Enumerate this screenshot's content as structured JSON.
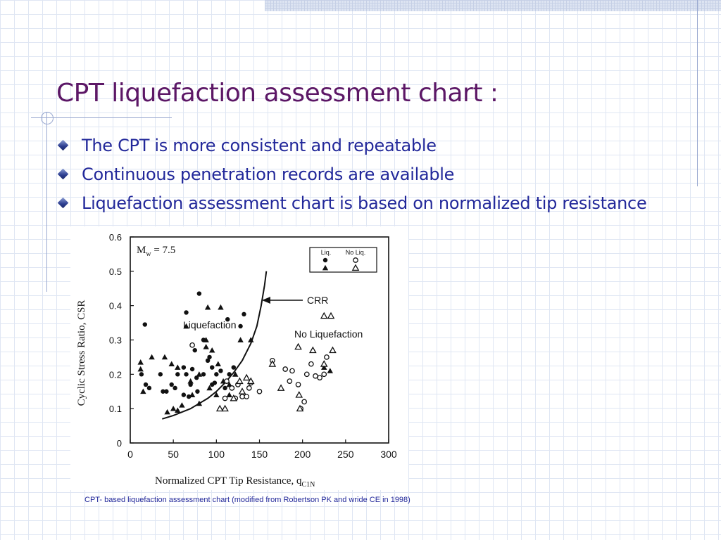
{
  "slide": {
    "title": "CPT liquefaction assessment chart :",
    "bullets": [
      "The CPT is more consistent and repeatable",
      "Continuous penetration records are available",
      "Liquefaction assessment chart is based on normalized tip resistance"
    ],
    "caption": "CPT- based liquefaction assessment chart (modified from Robertson PK and wride CE in 1998)",
    "colors": {
      "title": "#5c1766",
      "text": "#22289a",
      "grid": "#dfe6f3"
    }
  },
  "chart_data": {
    "type": "scatter",
    "title": "",
    "annotation_mw": "M",
    "annotation_mw_sub": "w",
    "annotation_mw_value": " = 7.5",
    "xlabel": "Normalized CPT Tip Resistance, q",
    "xlabel_sub": "C1N",
    "ylabel": "Cyclic Stress Ratio, CSR",
    "xlim": [
      0,
      300
    ],
    "ylim": [
      0,
      0.6
    ],
    "xticks": [
      0,
      50,
      100,
      150,
      200,
      250,
      300
    ],
    "yticks": [
      0,
      0.1,
      0.2,
      0.3,
      0.4,
      0.5,
      0.6
    ],
    "xtick_labels": [
      "0",
      "50",
      "100",
      "150",
      "200",
      "250",
      "300"
    ],
    "ytick_labels": [
      "0",
      "0.1",
      "0.2",
      "0.3",
      "0.4",
      "0.5",
      "0.6"
    ],
    "grid": false,
    "legend": {
      "position": "top-right",
      "col1": "Liq.",
      "col2": "No Liq."
    },
    "labels": {
      "crr": "CRR",
      "liquefaction": "Liquefaction",
      "no_liquefaction": "No Liquefaction"
    },
    "crr_curve": [
      [
        37,
        0.07
      ],
      [
        50,
        0.08
      ],
      [
        60,
        0.09
      ],
      [
        70,
        0.1
      ],
      [
        80,
        0.115
      ],
      [
        90,
        0.13
      ],
      [
        100,
        0.15
      ],
      [
        110,
        0.175
      ],
      [
        120,
        0.205
      ],
      [
        130,
        0.24
      ],
      [
        140,
        0.29
      ],
      [
        147,
        0.34
      ],
      [
        152,
        0.4
      ],
      [
        156,
        0.46
      ],
      [
        158,
        0.5
      ]
    ],
    "series": [
      {
        "name": "Liq.",
        "marker": "circle-filled",
        "points": [
          [
            17,
            0.345
          ],
          [
            80,
            0.435
          ],
          [
            65,
            0.38
          ],
          [
            113,
            0.36
          ],
          [
            128,
            0.34
          ],
          [
            132,
            0.375
          ],
          [
            13,
            0.2
          ],
          [
            18,
            0.17
          ],
          [
            22,
            0.16
          ],
          [
            35,
            0.2
          ],
          [
            38,
            0.15
          ],
          [
            42,
            0.15
          ],
          [
            48,
            0.17
          ],
          [
            52,
            0.16
          ],
          [
            55,
            0.2
          ],
          [
            62,
            0.22
          ],
          [
            65,
            0.2
          ],
          [
            70,
            0.17
          ],
          [
            72,
            0.215
          ],
          [
            77,
            0.19
          ],
          [
            85,
            0.2
          ],
          [
            90,
            0.24
          ],
          [
            92,
            0.25
          ],
          [
            95,
            0.22
          ],
          [
            98,
            0.175
          ],
          [
            100,
            0.2
          ],
          [
            105,
            0.21
          ],
          [
            110,
            0.16
          ],
          [
            115,
            0.2
          ],
          [
            120,
            0.22
          ],
          [
            75,
            0.27
          ],
          [
            85,
            0.3
          ],
          [
            62,
            0.14
          ],
          [
            68,
            0.135
          ],
          [
            78,
            0.15
          ],
          [
            95,
            0.17
          ]
        ]
      },
      {
        "name": "Liq.",
        "marker": "triangle-filled",
        "points": [
          [
            90,
            0.395
          ],
          [
            105,
            0.395
          ],
          [
            65,
            0.34
          ],
          [
            88,
            0.3
          ],
          [
            12,
            0.235
          ],
          [
            12,
            0.215
          ],
          [
            15,
            0.15
          ],
          [
            25,
            0.25
          ],
          [
            40,
            0.25
          ],
          [
            48,
            0.23
          ],
          [
            55,
            0.22
          ],
          [
            70,
            0.18
          ],
          [
            80,
            0.2
          ],
          [
            88,
            0.28
          ],
          [
            95,
            0.27
          ],
          [
            102,
            0.23
          ],
          [
            108,
            0.18
          ],
          [
            115,
            0.17
          ],
          [
            122,
            0.2
          ],
          [
            128,
            0.3
          ],
          [
            140,
            0.3
          ],
          [
            43,
            0.09
          ],
          [
            50,
            0.1
          ],
          [
            55,
            0.095
          ],
          [
            60,
            0.11
          ],
          [
            72,
            0.14
          ],
          [
            80,
            0.115
          ],
          [
            92,
            0.16
          ],
          [
            100,
            0.14
          ],
          [
            115,
            0.14
          ],
          [
            225,
            0.22
          ],
          [
            232,
            0.21
          ]
        ]
      },
      {
        "name": "No Liq.",
        "marker": "circle-open",
        "points": [
          [
            72,
            0.285
          ],
          [
            112,
            0.18
          ],
          [
            118,
            0.16
          ],
          [
            125,
            0.17
          ],
          [
            130,
            0.135
          ],
          [
            135,
            0.135
          ],
          [
            138,
            0.16
          ],
          [
            140,
            0.175
          ],
          [
            165,
            0.24
          ],
          [
            180,
            0.215
          ],
          [
            185,
            0.18
          ],
          [
            188,
            0.21
          ],
          [
            195,
            0.17
          ],
          [
            198,
            0.1
          ],
          [
            202,
            0.12
          ],
          [
            205,
            0.2
          ],
          [
            210,
            0.23
          ],
          [
            215,
            0.195
          ],
          [
            220,
            0.19
          ],
          [
            225,
            0.2
          ],
          [
            228,
            0.25
          ],
          [
            110,
            0.13
          ],
          [
            122,
            0.13
          ],
          [
            150,
            0.15
          ]
        ]
      },
      {
        "name": "No Liq.",
        "marker": "triangle-open",
        "points": [
          [
            225,
            0.37
          ],
          [
            233,
            0.37
          ],
          [
            212,
            0.27
          ],
          [
            195,
            0.28
          ],
          [
            235,
            0.27
          ],
          [
            165,
            0.23
          ],
          [
            196,
            0.14
          ],
          [
            197,
            0.1
          ],
          [
            135,
            0.19
          ],
          [
            140,
            0.18
          ],
          [
            127,
            0.18
          ],
          [
            130,
            0.15
          ],
          [
            104,
            0.1
          ],
          [
            110,
            0.1
          ],
          [
            225,
            0.23
          ],
          [
            175,
            0.16
          ],
          [
            120,
            0.13
          ]
        ]
      }
    ]
  }
}
